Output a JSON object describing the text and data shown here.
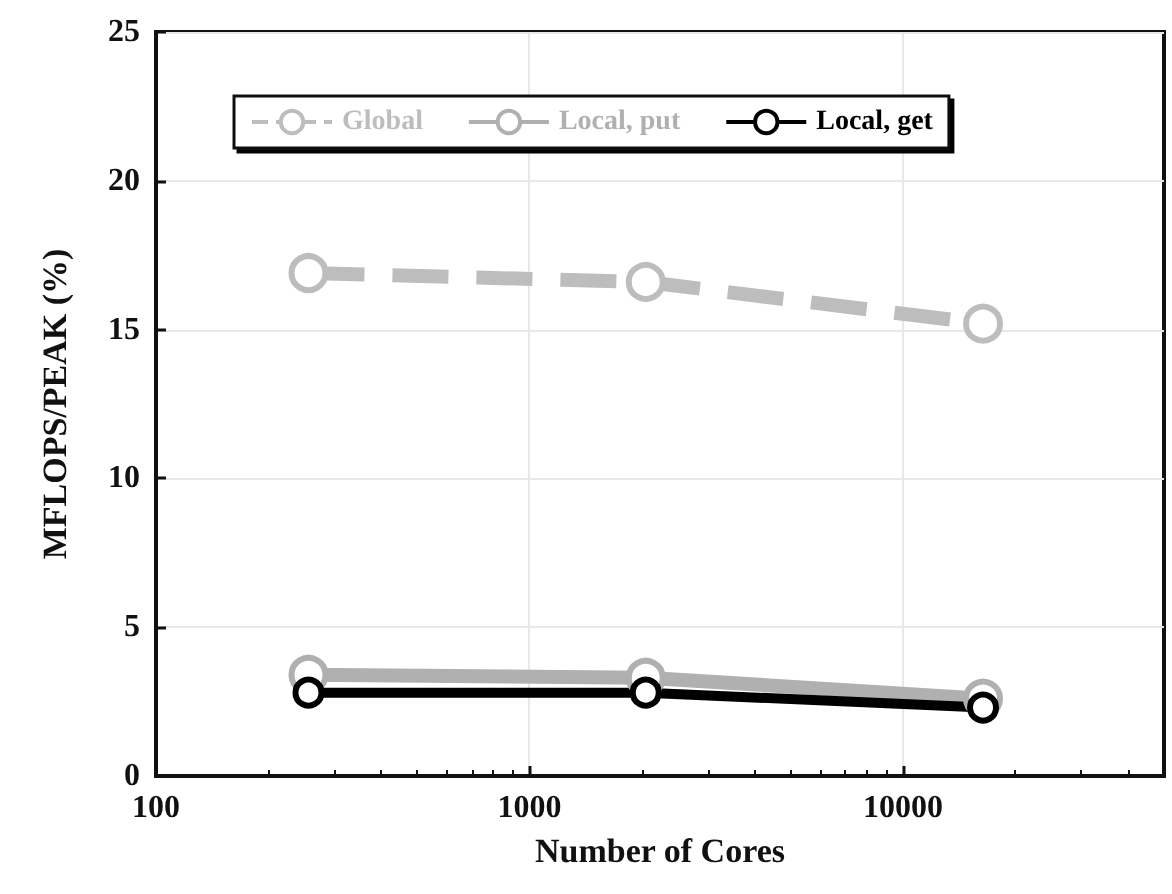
{
  "chart_data": {
    "type": "line",
    "xlabel": "Number of Cores",
    "ylabel": "MFLOPS/PEAK (%)",
    "x": [
      256,
      2048,
      16384
    ],
    "series": [
      {
        "name": "Global",
        "color": "#bdbdbd",
        "values": [
          16.9,
          16.6,
          15.2
        ],
        "line_style": "dashed"
      },
      {
        "name": "Local, put",
        "color": "#b0b0b0",
        "values": [
          3.4,
          3.3,
          2.6
        ],
        "line_style": "solid"
      },
      {
        "name": "Local, get",
        "color": "#000000",
        "values": [
          2.8,
          2.8,
          2.3
        ],
        "line_style": "solid"
      }
    ],
    "log": "x",
    "xlim": [
      100,
      50000
    ],
    "xticks": [
      100,
      1000,
      10000
    ],
    "ylim": [
      0,
      25
    ],
    "yticks": [
      0,
      5,
      10,
      15,
      20,
      25
    ],
    "grid": true,
    "legend": "top",
    "marker": "circle"
  }
}
